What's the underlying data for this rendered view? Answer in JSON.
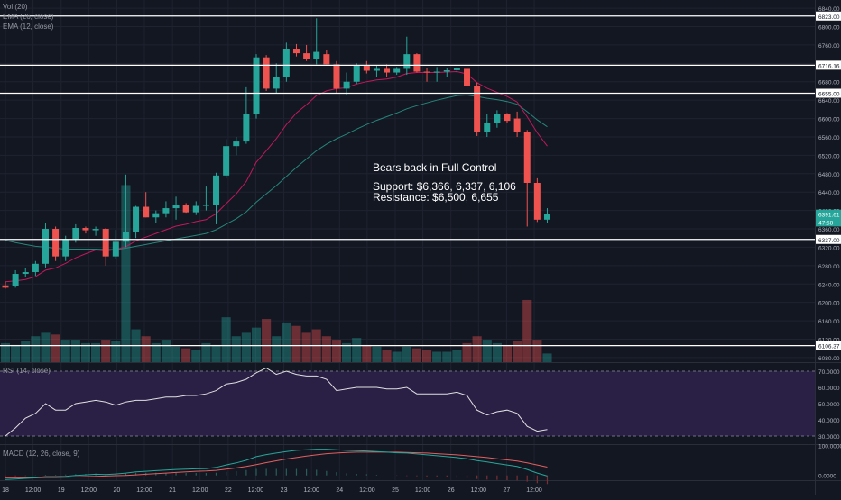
{
  "chart_data": {
    "type": "candlestick",
    "colors": {
      "background": "#131722",
      "grid": "#1f2330",
      "up": "#26a69a",
      "down": "#ef5350",
      "ema12": "#c2185b",
      "ema26": "#26857a",
      "level_line": "#ffffff",
      "rsi_band": "#2a1f45",
      "rsi_line": "#e0e0e0",
      "macd_line": "#26a69a",
      "signal_line": "#e25e5e",
      "axis_text": "#b2b5be"
    },
    "indicators": {
      "vol_label": "Vol (20)",
      "ema26_label": "EMA (26, close)",
      "ema12_label": "EMA (12, close)",
      "rsi_label": "RSI (14, close)",
      "macd_label": "MACD (12, 26, close, 9)"
    },
    "annotation": {
      "title": "Bears back in Full Control",
      "support": "Support: $6,366, 6,337, 6,106",
      "resistance": "Resistance: $6,500, 6,655"
    },
    "price_axis": {
      "ylim": [
        6070,
        6850
      ],
      "ticks": [
        "6840.00",
        "6800.00",
        "6760.00",
        "6720.00",
        "6680.00",
        "6640.00",
        "6600.00",
        "6560.00",
        "6520.00",
        "6480.00",
        "6440.00",
        "6400.00",
        "6360.00",
        "6320.00",
        "6280.00",
        "6240.00",
        "6200.00",
        "6160.00",
        "6120.00",
        "6080.00"
      ]
    },
    "levels": [
      {
        "label": "6823.00",
        "value": 6823
      },
      {
        "label": "6716.16",
        "value": 6716
      },
      {
        "label": "6655.00",
        "value": 6655
      },
      {
        "label": "6337.00",
        "value": 6337
      },
      {
        "label": "6106.37",
        "value": 6106
      }
    ],
    "price_tags": [
      {
        "label": "6391.61",
        "value": 6392,
        "color": "#26a69a"
      },
      {
        "label": "47:58",
        "value": 6375,
        "color": "#26a69a"
      }
    ],
    "x_axis": {
      "labels": [
        {
          "label": "18",
          "pos": 0
        },
        {
          "label": "12:00",
          "pos": 2.75
        },
        {
          "label": "19",
          "pos": 5.55
        },
        {
          "label": "12:00",
          "pos": 8.3
        },
        {
          "label": "20",
          "pos": 11.1
        },
        {
          "label": "12:00",
          "pos": 13.85
        },
        {
          "label": "21",
          "pos": 16.65
        },
        {
          "label": "12:00",
          "pos": 19.4
        },
        {
          "label": "22",
          "pos": 22.2
        },
        {
          "label": "12:00",
          "pos": 24.95
        },
        {
          "label": "23",
          "pos": 27.75
        },
        {
          "label": "12:00",
          "pos": 30.5
        },
        {
          "label": "24",
          "pos": 33.3
        },
        {
          "label": "12:00",
          "pos": 36.05
        },
        {
          "label": "25",
          "pos": 38.85
        },
        {
          "label": "12:00",
          "pos": 41.6
        },
        {
          "label": "26",
          "pos": 44.4
        },
        {
          "label": "12:00",
          "pos": 47.15
        },
        {
          "label": "27",
          "pos": 49.95
        },
        {
          "label": "12:00",
          "pos": 52.7
        }
      ]
    },
    "candles": [
      {
        "o": 6237,
        "h": 6245,
        "l": 6230,
        "c": 6232
      },
      {
        "o": 6236,
        "h": 6270,
        "l": 6232,
        "c": 6262
      },
      {
        "o": 6262,
        "h": 6275,
        "l": 6255,
        "c": 6266
      },
      {
        "o": 6266,
        "h": 6290,
        "l": 6258,
        "c": 6284
      },
      {
        "o": 6284,
        "h": 6372,
        "l": 6276,
        "c": 6360
      },
      {
        "o": 6360,
        "h": 6365,
        "l": 6290,
        "c": 6300
      },
      {
        "o": 6300,
        "h": 6345,
        "l": 6290,
        "c": 6338
      },
      {
        "o": 6338,
        "h": 6370,
        "l": 6330,
        "c": 6362
      },
      {
        "o": 6362,
        "h": 6365,
        "l": 6350,
        "c": 6357
      },
      {
        "o": 6357,
        "h": 6365,
        "l": 6345,
        "c": 6360
      },
      {
        "o": 6360,
        "h": 6362,
        "l": 6280,
        "c": 6300
      },
      {
        "o": 6300,
        "h": 6358,
        "l": 6295,
        "c": 6332
      },
      {
        "o": 6332,
        "h": 6478,
        "l": 6320,
        "c": 6354
      },
      {
        "o": 6354,
        "h": 6410,
        "l": 6340,
        "c": 6408
      },
      {
        "o": 6408,
        "h": 6440,
        "l": 6385,
        "c": 6385
      },
      {
        "o": 6385,
        "h": 6400,
        "l": 6372,
        "c": 6394
      },
      {
        "o": 6394,
        "h": 6420,
        "l": 6385,
        "c": 6405
      },
      {
        "o": 6405,
        "h": 6430,
        "l": 6380,
        "c": 6412
      },
      {
        "o": 6412,
        "h": 6416,
        "l": 6395,
        "c": 6396
      },
      {
        "o": 6396,
        "h": 6420,
        "l": 6390,
        "c": 6410
      },
      {
        "o": 6410,
        "h": 6452,
        "l": 6400,
        "c": 6412
      },
      {
        "o": 6412,
        "h": 6482,
        "l": 6370,
        "c": 6476
      },
      {
        "o": 6476,
        "h": 6555,
        "l": 6470,
        "c": 6540
      },
      {
        "o": 6540,
        "h": 6560,
        "l": 6520,
        "c": 6550
      },
      {
        "o": 6550,
        "h": 6668,
        "l": 6545,
        "c": 6610
      },
      {
        "o": 6610,
        "h": 6740,
        "l": 6600,
        "c": 6733
      },
      {
        "o": 6733,
        "h": 6738,
        "l": 6660,
        "c": 6665
      },
      {
        "o": 6665,
        "h": 6720,
        "l": 6655,
        "c": 6690
      },
      {
        "o": 6690,
        "h": 6765,
        "l": 6680,
        "c": 6752
      },
      {
        "o": 6752,
        "h": 6762,
        "l": 6735,
        "c": 6742
      },
      {
        "o": 6742,
        "h": 6760,
        "l": 6725,
        "c": 6730
      },
      {
        "o": 6730,
        "h": 6818,
        "l": 6718,
        "c": 6745
      },
      {
        "o": 6740,
        "h": 6750,
        "l": 6718,
        "c": 6718
      },
      {
        "o": 6718,
        "h": 6725,
        "l": 6655,
        "c": 6665
      },
      {
        "o": 6665,
        "h": 6700,
        "l": 6650,
        "c": 6680
      },
      {
        "o": 6680,
        "h": 6720,
        "l": 6675,
        "c": 6715
      },
      {
        "o": 6715,
        "h": 6725,
        "l": 6698,
        "c": 6704
      },
      {
        "o": 6704,
        "h": 6715,
        "l": 6690,
        "c": 6708
      },
      {
        "o": 6708,
        "h": 6718,
        "l": 6690,
        "c": 6700
      },
      {
        "o": 6700,
        "h": 6712,
        "l": 6695,
        "c": 6708
      },
      {
        "o": 6708,
        "h": 6778,
        "l": 6695,
        "c": 6740
      },
      {
        "o": 6740,
        "h": 6742,
        "l": 6700,
        "c": 6702
      },
      {
        "o": 6702,
        "h": 6710,
        "l": 6680,
        "c": 6700
      },
      {
        "o": 6700,
        "h": 6712,
        "l": 6680,
        "c": 6702
      },
      {
        "o": 6702,
        "h": 6710,
        "l": 6690,
        "c": 6705
      },
      {
        "o": 6705,
        "h": 6712,
        "l": 6700,
        "c": 6710
      },
      {
        "o": 6708,
        "h": 6712,
        "l": 6665,
        "c": 6670
      },
      {
        "o": 6670,
        "h": 6678,
        "l": 6562,
        "c": 6570
      },
      {
        "o": 6570,
        "h": 6610,
        "l": 6560,
        "c": 6590
      },
      {
        "o": 6590,
        "h": 6618,
        "l": 6580,
        "c": 6610
      },
      {
        "o": 6610,
        "h": 6612,
        "l": 6590,
        "c": 6595
      },
      {
        "o": 6600,
        "h": 6615,
        "l": 6560,
        "c": 6570
      },
      {
        "o": 6570,
        "h": 6575,
        "l": 6365,
        "c": 6460
      },
      {
        "o": 6460,
        "h": 6470,
        "l": 6375,
        "c": 6380
      },
      {
        "o": 6380,
        "h": 6405,
        "l": 6372,
        "c": 6392
      }
    ],
    "volume_ylim": [
      0,
      220
    ],
    "volumes": [
      {
        "v": 22,
        "up": true
      },
      {
        "v": 20,
        "up": true
      },
      {
        "v": 24,
        "up": true
      },
      {
        "v": 30,
        "up": true
      },
      {
        "v": 34,
        "up": true
      },
      {
        "v": 32,
        "up": false
      },
      {
        "v": 26,
        "up": true
      },
      {
        "v": 26,
        "up": true
      },
      {
        "v": 22,
        "up": true
      },
      {
        "v": 22,
        "up": true
      },
      {
        "v": 26,
        "up": false
      },
      {
        "v": 24,
        "up": true
      },
      {
        "v": 205,
        "up": true
      },
      {
        "v": 38,
        "up": true
      },
      {
        "v": 30,
        "up": false
      },
      {
        "v": 22,
        "up": true
      },
      {
        "v": 26,
        "up": true
      },
      {
        "v": 18,
        "up": true
      },
      {
        "v": 16,
        "up": false
      },
      {
        "v": 14,
        "up": true
      },
      {
        "v": 22,
        "up": true
      },
      {
        "v": 20,
        "up": true
      },
      {
        "v": 52,
        "up": true
      },
      {
        "v": 30,
        "up": true
      },
      {
        "v": 34,
        "up": true
      },
      {
        "v": 40,
        "up": true
      },
      {
        "v": 50,
        "up": false
      },
      {
        "v": 30,
        "up": true
      },
      {
        "v": 46,
        "up": true
      },
      {
        "v": 42,
        "up": false
      },
      {
        "v": 34,
        "up": false
      },
      {
        "v": 38,
        "up": false
      },
      {
        "v": 30,
        "up": false
      },
      {
        "v": 26,
        "up": false
      },
      {
        "v": 22,
        "up": true
      },
      {
        "v": 28,
        "up": true
      },
      {
        "v": 20,
        "up": false
      },
      {
        "v": 18,
        "up": true
      },
      {
        "v": 14,
        "up": false
      },
      {
        "v": 12,
        "up": true
      },
      {
        "v": 18,
        "up": true
      },
      {
        "v": 16,
        "up": false
      },
      {
        "v": 14,
        "up": false
      },
      {
        "v": 12,
        "up": true
      },
      {
        "v": 12,
        "up": true
      },
      {
        "v": 14,
        "up": true
      },
      {
        "v": 22,
        "up": false
      },
      {
        "v": 30,
        "up": false
      },
      {
        "v": 26,
        "up": true
      },
      {
        "v": 22,
        "up": true
      },
      {
        "v": 20,
        "up": false
      },
      {
        "v": 24,
        "up": false
      },
      {
        "v": 72,
        "up": false
      },
      {
        "v": 26,
        "up": false
      },
      {
        "v": 10,
        "up": true
      }
    ],
    "ema12": [
      6245,
      6247,
      6250,
      6256,
      6270,
      6275,
      6285,
      6297,
      6306,
      6314,
      6312,
      6315,
      6321,
      6334,
      6342,
      6350,
      6358,
      6366,
      6370,
      6376,
      6380,
      6393,
      6415,
      6436,
      6463,
      6505,
      6530,
      6556,
      6587,
      6612,
      6630,
      6650,
      6660,
      6665,
      6667,
      6675,
      6680,
      6684,
      6686,
      6690,
      6698,
      6700,
      6700,
      6700,
      6701,
      6702,
      6697,
      6678,
      6666,
      6657,
      6648,
      6636,
      6604,
      6569,
      6540
    ],
    "ema26": [
      6335,
      6330,
      6326,
      6322,
      6320,
      6318,
      6316,
      6316,
      6316,
      6316,
      6315,
      6315,
      6318,
      6322,
      6326,
      6330,
      6334,
      6338,
      6342,
      6346,
      6350,
      6358,
      6370,
      6382,
      6397,
      6418,
      6436,
      6454,
      6474,
      6494,
      6512,
      6530,
      6544,
      6556,
      6566,
      6577,
      6587,
      6596,
      6604,
      6612,
      6621,
      6628,
      6634,
      6640,
      6645,
      6650,
      6651,
      6648,
      6644,
      6641,
      6637,
      6631,
      6615,
      6597,
      6582
    ],
    "rsi": {
      "ylim": [
        25,
        75
      ],
      "ticks": [
        "70.0000",
        "60.0000",
        "50.0000",
        "40.0000",
        "30.0000"
      ],
      "band": [
        30,
        70
      ],
      "values": [
        30,
        35,
        41,
        44,
        50,
        46,
        46,
        50,
        51,
        52,
        51,
        49,
        51,
        52,
        52,
        53,
        54,
        54,
        55,
        55,
        56,
        58,
        62,
        63,
        65,
        69,
        72,
        68,
        70,
        68,
        67,
        67,
        65,
        58,
        59,
        60,
        60,
        60,
        59,
        59,
        60,
        56,
        56,
        56,
        56,
        57,
        55,
        46,
        43,
        45,
        46,
        44,
        36,
        33,
        34
      ]
    },
    "macd": {
      "ylim": [
        -16,
        102
      ],
      "ticks": [
        "100.0000",
        "0.0000"
      ],
      "macd_line": [
        -14,
        -12,
        -10,
        -8,
        -4,
        -4,
        -3,
        0,
        2,
        4,
        3,
        5,
        8,
        12,
        14,
        16,
        18,
        20,
        21,
        22,
        23,
        27,
        35,
        42,
        51,
        63,
        70,
        75,
        80,
        84,
        86,
        88,
        88,
        86,
        84,
        83,
        82,
        80,
        78,
        76,
        75,
        72,
        69,
        66,
        63,
        60,
        56,
        50,
        45,
        40,
        35,
        30,
        20,
        8,
        -2
      ],
      "signal_line": [
        -8,
        -8,
        -8,
        -8,
        -7,
        -7,
        -6,
        -5,
        -4,
        -3,
        -2,
        -1,
        0,
        2,
        4,
        6,
        8,
        10,
        12,
        14,
        15,
        17,
        21,
        25,
        30,
        36,
        43,
        49,
        55,
        60,
        65,
        69,
        73,
        75,
        77,
        78,
        78,
        78,
        78,
        78,
        77,
        76,
        75,
        73,
        71,
        69,
        66,
        63,
        60,
        56,
        52,
        48,
        42,
        35,
        28
      ],
      "histogram": [
        -3,
        -3,
        -2,
        -1,
        2,
        2,
        3,
        4,
        5,
        6,
        5,
        6,
        7,
        9,
        9,
        9,
        9,
        9,
        8,
        8,
        8,
        9,
        12,
        14,
        18,
        22,
        22,
        22,
        22,
        22,
        21,
        19,
        15,
        11,
        7,
        5,
        4,
        2,
        0,
        -1,
        -2,
        -3,
        -5,
        -6,
        -7,
        -8,
        -9,
        -12,
        -14,
        -15,
        -16,
        -17,
        -21,
        -26,
        -29
      ]
    }
  }
}
